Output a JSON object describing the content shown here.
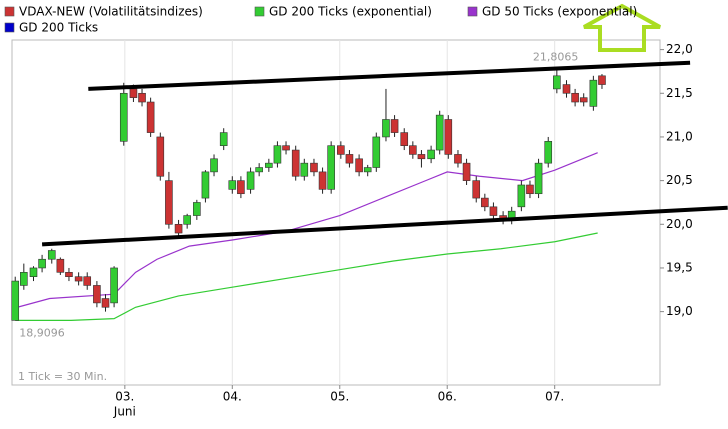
{
  "chart_data": {
    "type": "candlestick",
    "series": [
      {
        "name": "VDAX-NEW (Volatilitätsindizes)",
        "color": "#cc3333",
        "up_color": "#33cc33",
        "down_color": "#cc3333",
        "x": [
          1.98,
          2.06,
          2.15,
          2.23,
          2.32,
          2.4,
          2.48,
          2.57,
          2.65,
          2.74,
          2.82,
          2.9,
          2.99,
          3.08,
          3.16,
          3.24,
          3.33,
          3.41,
          3.5,
          3.58,
          3.67,
          3.75,
          3.83,
          3.92,
          4.0,
          4.08,
          4.17,
          4.25,
          4.34,
          4.42,
          4.5,
          4.59,
          4.67,
          4.76,
          4.84,
          4.92,
          5.01,
          5.09,
          5.18,
          5.26,
          5.34,
          5.43,
          5.51,
          5.6,
          5.68,
          5.76,
          5.85,
          5.93,
          6.01,
          6.1,
          6.18,
          6.27,
          6.35,
          6.43,
          6.52,
          6.6,
          6.69,
          6.77,
          6.85,
          6.94,
          7.02,
          7.11,
          7.19,
          7.27,
          7.36,
          7.44
        ],
        "open": [
          18.9,
          19.3,
          19.4,
          19.5,
          19.6,
          19.6,
          19.45,
          19.4,
          19.4,
          19.3,
          19.15,
          19.1,
          20.95,
          21.55,
          21.5,
          21.4,
          21.0,
          20.5,
          20.0,
          20.0,
          20.1,
          20.3,
          20.6,
          20.9,
          20.4,
          20.5,
          20.4,
          20.6,
          20.65,
          20.7,
          20.9,
          20.85,
          20.55,
          20.7,
          20.6,
          20.4,
          20.9,
          20.8,
          20.75,
          20.6,
          20.65,
          21.0,
          21.2,
          21.05,
          20.9,
          20.8,
          20.75,
          20.85,
          21.2,
          20.8,
          20.7,
          20.5,
          20.3,
          20.2,
          20.1,
          20.05,
          20.2,
          20.45,
          20.35,
          20.7,
          21.55,
          21.6,
          21.5,
          21.45,
          21.35,
          21.7
        ],
        "high": [
          19.4,
          19.55,
          19.52,
          19.65,
          19.72,
          19.62,
          19.5,
          19.45,
          19.45,
          19.35,
          19.2,
          19.52,
          21.62,
          21.6,
          21.55,
          21.45,
          21.05,
          20.6,
          20.05,
          20.12,
          20.28,
          20.62,
          20.8,
          21.1,
          20.55,
          20.55,
          20.65,
          20.7,
          20.75,
          20.95,
          20.95,
          20.9,
          20.75,
          20.75,
          20.65,
          20.95,
          20.95,
          20.85,
          20.8,
          20.68,
          21.05,
          21.55,
          21.25,
          21.1,
          20.95,
          20.85,
          20.9,
          21.3,
          21.25,
          20.85,
          20.75,
          20.55,
          20.35,
          20.25,
          20.15,
          20.2,
          20.5,
          20.5,
          20.75,
          21.0,
          21.8065,
          21.65,
          21.55,
          21.5,
          21.7,
          21.72
        ],
        "low": [
          18.9096,
          19.25,
          19.35,
          19.45,
          19.55,
          19.42,
          19.35,
          19.3,
          19.25,
          19.05,
          19.0,
          19.05,
          20.9,
          21.4,
          21.35,
          21.0,
          20.5,
          19.95,
          19.85,
          19.95,
          20.05,
          20.25,
          20.55,
          20.85,
          20.35,
          20.3,
          20.35,
          20.55,
          20.6,
          20.65,
          20.8,
          20.5,
          20.5,
          20.55,
          20.35,
          20.35,
          20.75,
          20.65,
          20.55,
          20.55,
          20.6,
          20.95,
          21.0,
          20.85,
          20.75,
          20.65,
          20.7,
          20.8,
          20.75,
          20.65,
          20.45,
          20.25,
          20.15,
          20.05,
          20.0,
          20.0,
          20.15,
          20.3,
          20.3,
          20.65,
          21.5,
          21.45,
          21.35,
          21.35,
          21.3,
          21.55
        ],
        "close": [
          19.35,
          19.45,
          19.5,
          19.6,
          19.7,
          19.45,
          19.4,
          19.35,
          19.3,
          19.1,
          19.05,
          19.5,
          21.5,
          21.45,
          21.4,
          21.05,
          20.55,
          20.0,
          19.9,
          20.1,
          20.25,
          20.6,
          20.75,
          21.05,
          20.5,
          20.35,
          20.6,
          20.65,
          20.7,
          20.9,
          20.85,
          20.55,
          20.7,
          20.6,
          20.4,
          20.9,
          20.8,
          20.7,
          20.6,
          20.65,
          21.0,
          21.2,
          21.05,
          20.9,
          20.8,
          20.75,
          20.85,
          21.25,
          20.8,
          20.7,
          20.5,
          20.3,
          20.2,
          20.1,
          20.05,
          20.15,
          20.45,
          20.35,
          20.7,
          20.95,
          21.7,
          21.5,
          21.4,
          21.4,
          21.65,
          21.6
        ]
      }
    ],
    "overlays": [
      {
        "name": "GD 200 Ticks (exponential)",
        "color": "#33cc33",
        "x": [
          1.98,
          2.5,
          2.9,
          3.1,
          3.5,
          4.0,
          4.5,
          5.0,
          5.5,
          6.0,
          6.5,
          7.0,
          7.4
        ],
        "values": [
          18.9,
          18.9,
          18.92,
          19.05,
          19.18,
          19.28,
          19.38,
          19.48,
          19.58,
          19.66,
          19.72,
          19.8,
          19.9
        ]
      },
      {
        "name": "GD 50 Ticks (exponential)",
        "color": "#9933cc",
        "x": [
          2.0,
          2.3,
          2.9,
          3.1,
          3.3,
          3.6,
          4.0,
          4.5,
          5.0,
          5.4,
          5.8,
          6.0,
          6.3,
          6.7,
          7.0,
          7.4
        ],
        "values": [
          19.05,
          19.15,
          19.2,
          19.45,
          19.6,
          19.75,
          19.82,
          19.92,
          20.1,
          20.3,
          20.5,
          20.6,
          20.55,
          20.5,
          20.62,
          20.82
        ]
      },
      {
        "name": "GD 200 Ticks",
        "color": "#0000cc"
      }
    ],
    "trendlines": [
      {
        "x": [
          2.66,
          8.26
        ],
        "values": [
          21.55,
          21.85
        ]
      },
      {
        "x": [
          2.23,
          8.61
        ],
        "values": [
          19.77,
          20.19
        ]
      }
    ],
    "annotations": [
      {
        "value": 21.8065,
        "label": "21,8065"
      },
      {
        "value": 18.9096,
        "label": "18,9096"
      }
    ],
    "note": "1 Tick = 30 Min.",
    "month": "Juni",
    "xlim": [
      1.95,
      7.98
    ],
    "xticks": [
      {
        "value": 3,
        "label": "03."
      },
      {
        "value": 4,
        "label": "04."
      },
      {
        "value": 5,
        "label": "05."
      },
      {
        "value": 6,
        "label": "06."
      },
      {
        "value": 7,
        "label": "07."
      }
    ],
    "ylim": [
      18.16,
      22.11
    ],
    "yticks": [
      {
        "value": 19.0,
        "label": "19,0"
      },
      {
        "value": 19.5,
        "label": "19,5"
      },
      {
        "value": 20.0,
        "label": "20,0"
      },
      {
        "value": 20.5,
        "label": "20,5"
      },
      {
        "value": 21.0,
        "label": "21,0"
      },
      {
        "value": 21.5,
        "label": "21,5"
      },
      {
        "value": 22.0,
        "label": "22,0"
      }
    ],
    "grid": true
  }
}
